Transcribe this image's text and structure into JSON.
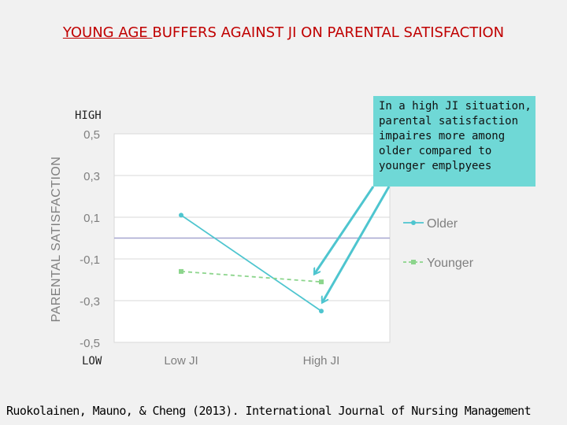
{
  "slide": {
    "title_emphasis": "YOUNG AGE ",
    "title_rest": "BUFFERS AGAINST JI ON PARENTAL SATISFACTION",
    "high_label": "HIGH",
    "low_label": "LOW",
    "callout_lines": [
      "In a high JI situation,",
      "parental satisfaction",
      "impaires more among",
      "older compared to",
      "younger  emplpyees"
    ],
    "citation": "Ruokolainen, Mauno, & Cheng (2013). International Journal of Nursing Management"
  },
  "colors": {
    "older": "#4ec5cf",
    "younger": "#8cd58c",
    "arrow": "#4ec5cf",
    "callout_bg": "#6fd8d6",
    "title": "#c00000"
  },
  "chart_data": {
    "type": "line",
    "categories": [
      "Low JI",
      "High JI"
    ],
    "series": [
      {
        "name": "Older",
        "values": [
          0.11,
          -0.35
        ]
      },
      {
        "name": "Younger",
        "values": [
          -0.16,
          -0.21
        ]
      }
    ],
    "title": "",
    "xlabel": "",
    "ylabel": "PARENTAL SATISFACTION",
    "ylim": [
      -0.5,
      0.5
    ],
    "yticks": [
      0.5,
      0.3,
      0.1,
      -0.1,
      -0.3,
      -0.5
    ],
    "ytick_labels": [
      "0,5",
      "0,3",
      "0,1",
      "-0,1",
      "-0,3",
      "-0,5"
    ],
    "grid": true,
    "legend": "right"
  }
}
